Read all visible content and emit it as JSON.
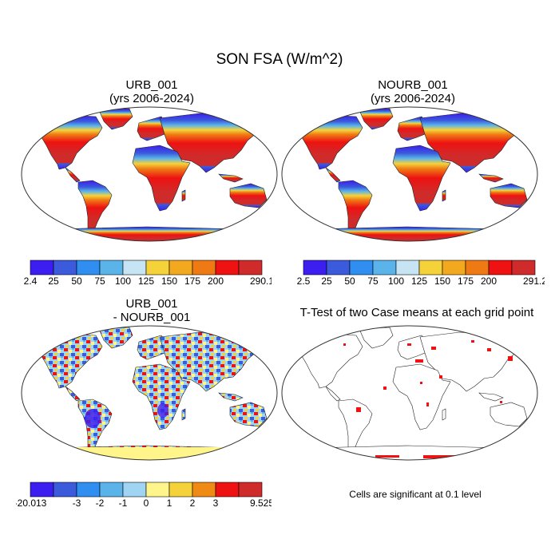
{
  "title": "SON FSA (W/m^2)",
  "panels": [
    {
      "title_line1": "URB_001",
      "title_line2": "(yrs 2006-2024)"
    },
    {
      "title_line1": "NOURB_001",
      "title_line2": "(yrs 2006-2024)"
    },
    {
      "title_line1": "URB_001",
      "title_line2": "- NOURB_001"
    },
    {
      "title_line1": "T-Test of two Case means at each grid point",
      "title_line2": ""
    }
  ],
  "significance_note": "Cells are significant at 0.1 level",
  "colorbars": [
    {
      "labels": [
        "2.4",
        "25",
        "50",
        "75",
        "100",
        "125",
        "150",
        "175",
        "200",
        "290.1"
      ],
      "colors": [
        "#3c1ef0",
        "#3b5bdc",
        "#2f8ef0",
        "#5ab4ea",
        "#c6e4f4",
        "#f6d23a",
        "#f2a91f",
        "#ef7a14",
        "#ee1212",
        "#cf2b2b"
      ]
    },
    {
      "labels": [
        "2.5",
        "25",
        "50",
        "75",
        "100",
        "125",
        "150",
        "175",
        "200",
        "291.2"
      ],
      "colors": [
        "#3c1ef0",
        "#3b5bdc",
        "#2f8ef0",
        "#5ab4ea",
        "#c6e4f4",
        "#f6d23a",
        "#f2a91f",
        "#ef7a14",
        "#ee1212",
        "#cf2b2b"
      ]
    },
    {
      "labels": [
        "-20.013",
        "-3",
        "-2",
        "-1",
        "0",
        "1",
        "2",
        "3",
        "9.525"
      ],
      "colors": [
        "#3c1ef0",
        "#3b5bdc",
        "#2f8ef0",
        "#5ab4ea",
        "#9fd4f2",
        "#fff58a",
        "#f6d23a",
        "#ef8b14",
        "#ee1212",
        "#cf2b2b"
      ]
    }
  ]
}
